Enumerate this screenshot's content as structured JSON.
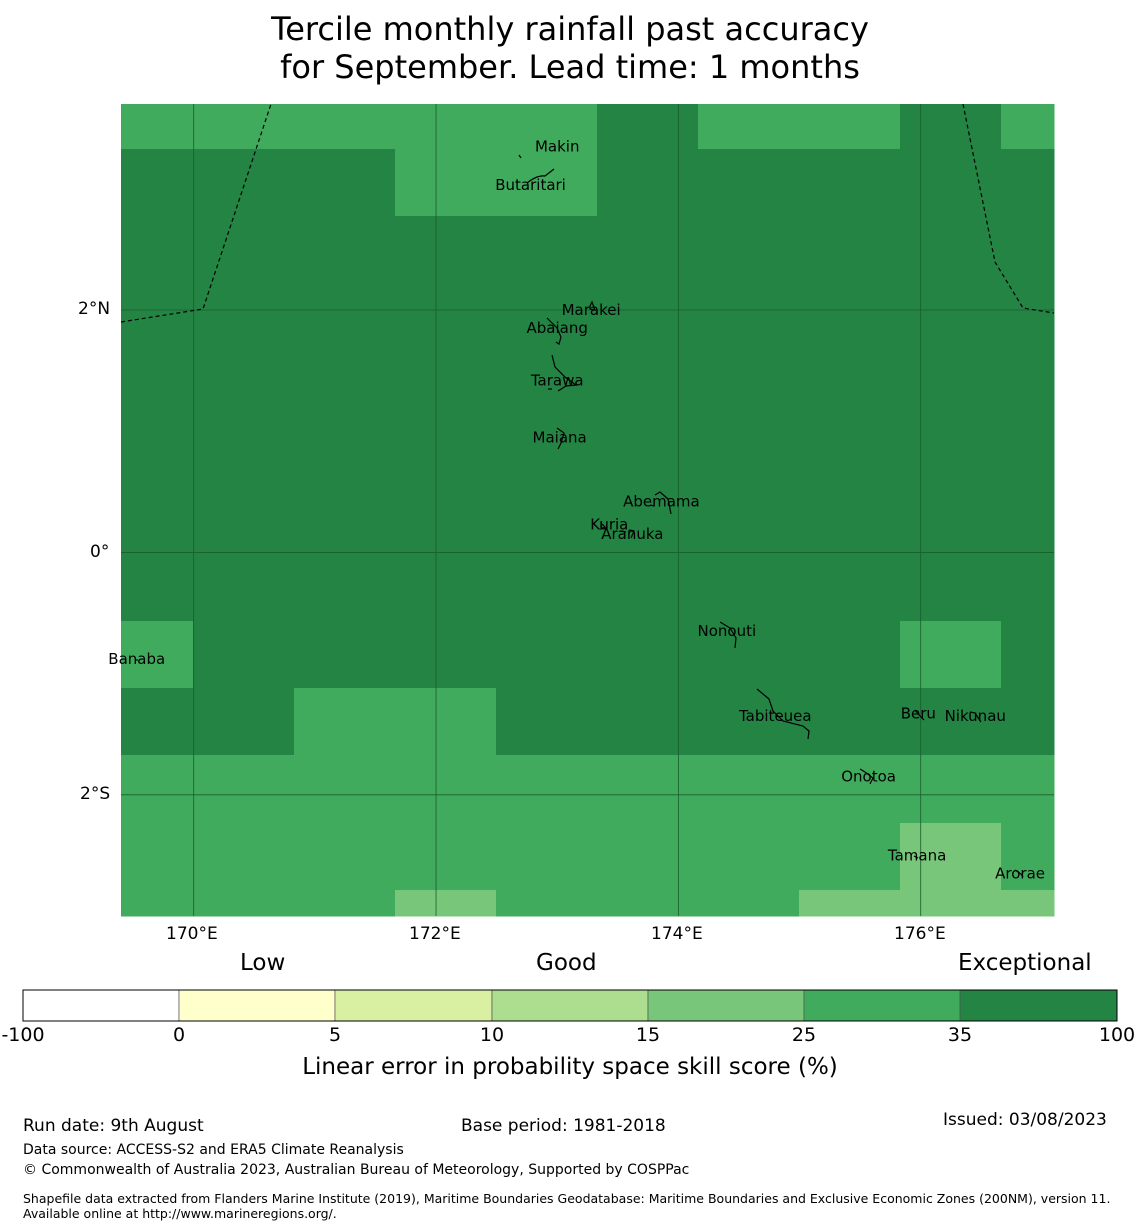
{
  "title": {
    "line1": "Tercile monthly rainfall past accuracy",
    "line2": "for September. Lead time: 1 months"
  },
  "map": {
    "lon_range": [
      169.4,
      177.1
    ],
    "lat_range": [
      -3.0,
      3.7
    ],
    "x_ticks": [
      {
        "value": 170,
        "label": "170°E"
      },
      {
        "value": 172,
        "label": "172°E"
      },
      {
        "value": 174,
        "label": "174°E"
      },
      {
        "value": 176,
        "label": "176°E"
      }
    ],
    "y_ticks": [
      {
        "value": 2,
        "label": "2°N"
      },
      {
        "value": 0,
        "label": "0°"
      },
      {
        "value": -2,
        "label": "2°S"
      }
    ],
    "colors": {
      "class_25_35": "#41ab5d",
      "class_15_25": "#78c679",
      "class_35_100": "#238443"
    },
    "places": [
      {
        "name": "Makin",
        "lon": 173.0,
        "lat": 3.35
      },
      {
        "name": "Butaritari",
        "lon": 172.78,
        "lat": 3.03
      },
      {
        "name": "Marakei",
        "lon": 173.28,
        "lat": 2.0
      },
      {
        "name": "Abaiang",
        "lon": 173.0,
        "lat": 1.85
      },
      {
        "name": "Tarawa",
        "lon": 173.0,
        "lat": 1.42
      },
      {
        "name": "Maiana",
        "lon": 173.02,
        "lat": 0.95
      },
      {
        "name": "Abemama",
        "lon": 173.86,
        "lat": 0.42
      },
      {
        "name": "Kuria",
        "lon": 173.43,
        "lat": 0.23
      },
      {
        "name": "Aranuka",
        "lon": 173.62,
        "lat": 0.15
      },
      {
        "name": "Nonouti",
        "lon": 174.4,
        "lat": -0.65
      },
      {
        "name": "Banaba",
        "lon": 169.53,
        "lat": -0.88
      },
      {
        "name": "Tabiteuea",
        "lon": 174.8,
        "lat": -1.35
      },
      {
        "name": "Beru",
        "lon": 175.98,
        "lat": -1.33
      },
      {
        "name": "Nikunau",
        "lon": 176.45,
        "lat": -1.35
      },
      {
        "name": "Onotoa",
        "lon": 175.57,
        "lat": -1.85
      },
      {
        "name": "Tamana",
        "lon": 175.97,
        "lat": -2.5
      },
      {
        "name": "Arorae",
        "lon": 176.82,
        "lat": -2.65
      }
    ]
  },
  "colorbar": {
    "labels_top": {
      "low": "Low",
      "good": "Good",
      "exceptional": "Exceptional"
    },
    "ticks": [
      "-100",
      "0",
      "5",
      "10",
      "15",
      "25",
      "35",
      "100"
    ],
    "colors": [
      "#ffffff",
      "#ffffcc",
      "#d9f0a3",
      "#addd8e",
      "#78c679",
      "#41ab5d",
      "#238443"
    ],
    "title": "Linear error in probability space skill score (%)"
  },
  "footer": {
    "run_date": "Run date: 9th August",
    "base_period": "Base period: 1981-2018",
    "issued": "Issued: 03/08/2023",
    "data_source": "Data source: ACCESS-S2 and ERA5 Climate Reanalysis",
    "copyright": "© Commonwealth of Australia 2023, Australian Bureau of Meteorology, Supported by COSPPac",
    "shapefile": "Shapefile data extracted from Flanders Marine Institute (2019), Maritime Boundaries Geodatabase: Maritime Boundaries and Exclusive Economic Zones (200NM), version 11. Available online at http://www.marineregions.org/."
  }
}
